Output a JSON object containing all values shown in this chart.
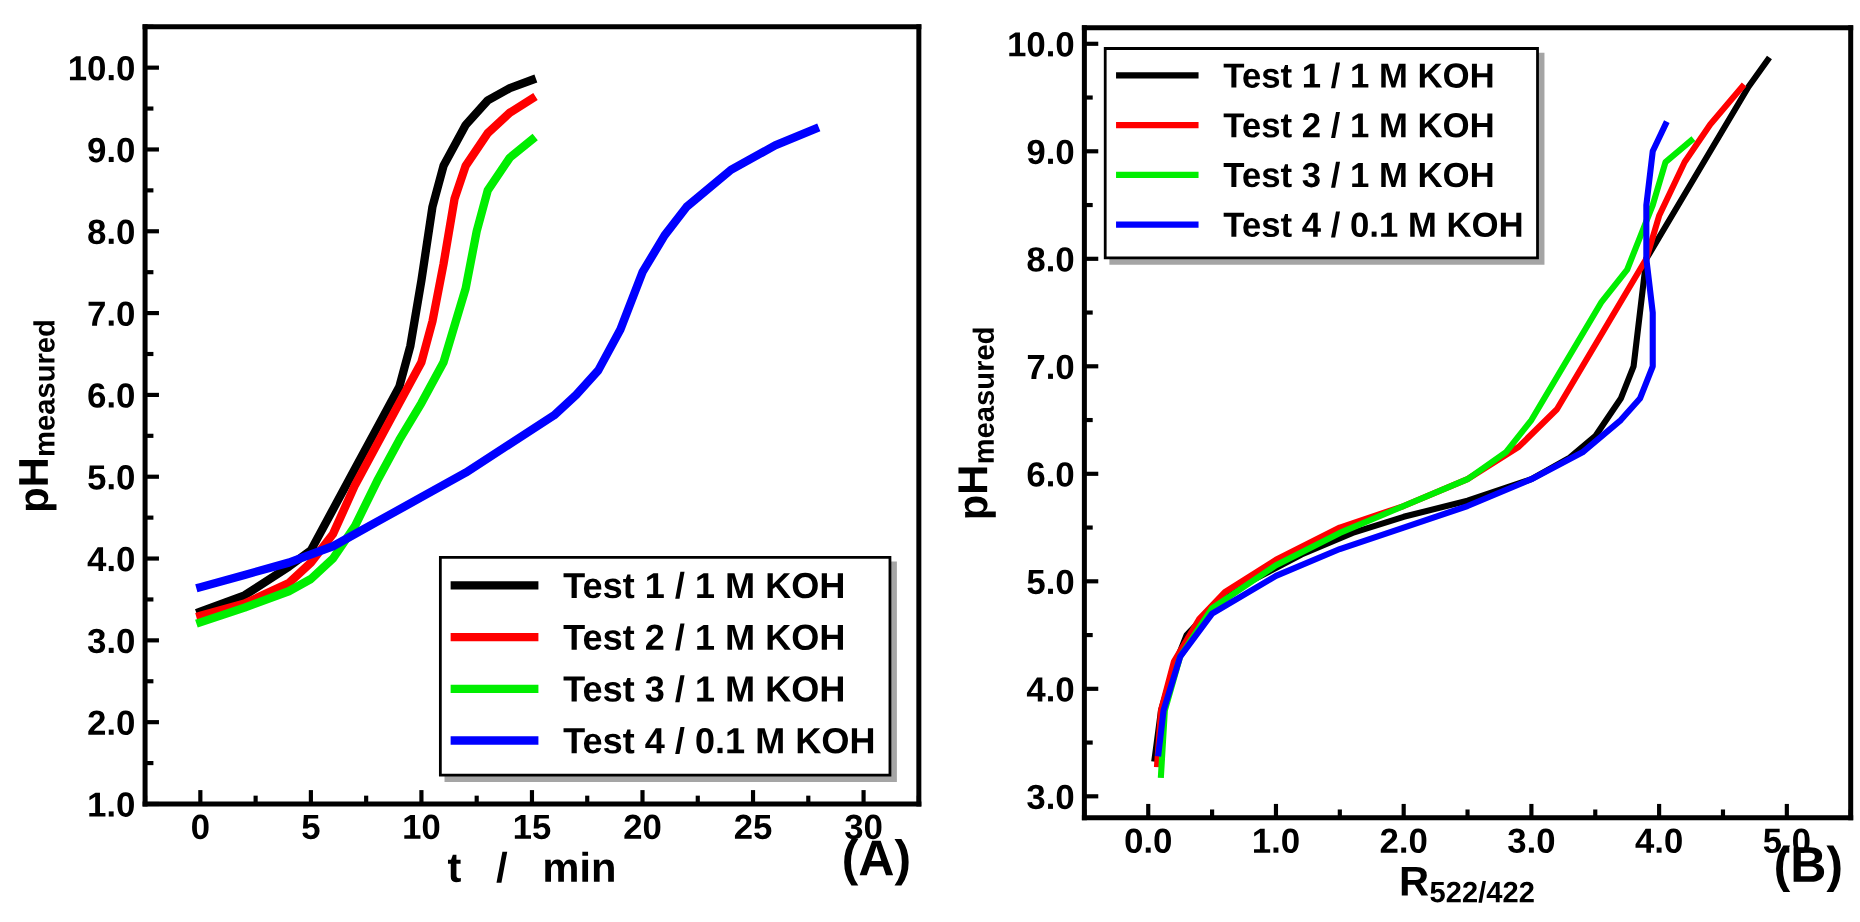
{
  "chart_data": [
    {
      "type": "line",
      "xlabel": "t   /   min",
      "ylabel": "pH$_{measured}$",
      "annotations": [
        "(A)"
      ],
      "legend": "bottom right",
      "grid": false,
      "xlim": [
        -2.5,
        32.5
      ],
      "ylim": [
        1.0,
        10.5
      ],
      "xticks": [
        0,
        5,
        10,
        15,
        20,
        25,
        30
      ],
      "yticks": [
        {
          "value": 1,
          "label": "1.0"
        },
        {
          "value": 2,
          "label": "2.0"
        },
        {
          "value": 3,
          "label": "3.0"
        },
        {
          "value": 4,
          "label": "4.0"
        },
        {
          "value": 5,
          "label": "5.0"
        },
        {
          "value": 6,
          "label": "6.0"
        },
        {
          "value": 7,
          "label": "7.0"
        },
        {
          "value": 8,
          "label": "8.0"
        },
        {
          "value": 9,
          "label": "9.0"
        },
        {
          "value": 10,
          "label": "10.0"
        }
      ],
      "series": [
        {
          "name": "Test 1 / 1 M KOH",
          "color": "#000000",
          "x": [
            0,
            2,
            4,
            5,
            6,
            7,
            8,
            9,
            9.5,
            10,
            10.5,
            11,
            12,
            13,
            14,
            15
          ],
          "values": [
            3.35,
            3.55,
            3.9,
            4.1,
            4.6,
            5.1,
            5.6,
            6.1,
            6.6,
            7.4,
            8.3,
            8.8,
            9.3,
            9.6,
            9.75,
            9.85
          ]
        },
        {
          "name": "Test 2 / 1 M KOH",
          "color": "#ff0000",
          "x": [
            0,
            2,
            4,
            5,
            6,
            7,
            8,
            9,
            10,
            10.5,
            11,
            11.5,
            12,
            13,
            14,
            15
          ],
          "values": [
            3.3,
            3.45,
            3.7,
            3.95,
            4.3,
            4.9,
            5.4,
            5.9,
            6.4,
            6.9,
            7.6,
            8.4,
            8.8,
            9.2,
            9.45,
            9.62
          ]
        },
        {
          "name": "Test 3 / 1 M KOH",
          "color": "#00ee00",
          "x": [
            0,
            2,
            4,
            5,
            6,
            7,
            8,
            9,
            10,
            11,
            12,
            12.5,
            13,
            14,
            15
          ],
          "values": [
            3.22,
            3.4,
            3.6,
            3.75,
            4.0,
            4.4,
            4.95,
            5.45,
            5.9,
            6.4,
            7.3,
            8.0,
            8.5,
            8.9,
            9.12
          ]
        },
        {
          "name": "Test 4 / 0.1 M KOH",
          "color": "#0000ff",
          "x": [
            0,
            2,
            4,
            6,
            8,
            10,
            12,
            14,
            16,
            17,
            18,
            19,
            20,
            21,
            22,
            24,
            26,
            27.8
          ],
          "values": [
            3.65,
            3.8,
            3.95,
            4.15,
            4.45,
            4.75,
            5.05,
            5.4,
            5.75,
            6.0,
            6.3,
            6.8,
            7.5,
            7.95,
            8.3,
            8.75,
            9.05,
            9.25
          ]
        }
      ]
    },
    {
      "type": "line",
      "xlabel": "R$_{522/422}$",
      "ylabel": "pH$_{measured}$",
      "annotations": [
        "(B)"
      ],
      "legend": "top left",
      "grid": false,
      "xlim": [
        -0.5,
        5.5
      ],
      "ylim": [
        2.8,
        10.15
      ],
      "xticks": [
        {
          "value": 0,
          "label": "0.0"
        },
        {
          "value": 1,
          "label": "1.0"
        },
        {
          "value": 2,
          "label": "2.0"
        },
        {
          "value": 3,
          "label": "3.0"
        },
        {
          "value": 4,
          "label": "4.0"
        },
        {
          "value": 5,
          "label": "5.0"
        }
      ],
      "yticks": [
        {
          "value": 3,
          "label": "3.0"
        },
        {
          "value": 4,
          "label": "4.0"
        },
        {
          "value": 5,
          "label": "5.0"
        },
        {
          "value": 6,
          "label": "6.0"
        },
        {
          "value": 7,
          "label": "7.0"
        },
        {
          "value": 8,
          "label": "8.0"
        },
        {
          "value": 9,
          "label": "9.0"
        },
        {
          "value": 10,
          "label": "10.0"
        }
      ],
      "series": [
        {
          "name": "Test 1 / 1 M KOH",
          "color": "#000000",
          "x": [
            0.05,
            0.1,
            0.2,
            0.3,
            0.5,
            0.8,
            1.2,
            1.6,
            2.0,
            2.5,
            3.0,
            3.3,
            3.5,
            3.7,
            3.8,
            3.85,
            3.9,
            4.1,
            4.3,
            4.5,
            4.7,
            4.85
          ],
          "values": [
            3.35,
            3.8,
            4.2,
            4.5,
            4.75,
            5.0,
            5.25,
            5.45,
            5.6,
            5.75,
            5.95,
            6.15,
            6.35,
            6.7,
            7.0,
            7.5,
            8.0,
            8.4,
            8.8,
            9.2,
            9.6,
            9.85
          ]
        },
        {
          "name": "Test 2 / 1 M KOH",
          "color": "#ff0000",
          "x": [
            0.07,
            0.1,
            0.2,
            0.4,
            0.6,
            1.0,
            1.5,
            2.0,
            2.5,
            2.9,
            3.2,
            3.4,
            3.6,
            3.75,
            3.9,
            4.0,
            4.2,
            4.4,
            4.65
          ],
          "values": [
            3.3,
            3.8,
            4.25,
            4.65,
            4.9,
            5.2,
            5.5,
            5.7,
            5.95,
            6.25,
            6.6,
            7.0,
            7.4,
            7.7,
            8.0,
            8.4,
            8.9,
            9.25,
            9.6
          ]
        },
        {
          "name": "Test 3 / 1 M KOH",
          "color": "#00ee00",
          "x": [
            0.1,
            0.13,
            0.25,
            0.5,
            1.0,
            1.5,
            2.0,
            2.5,
            2.8,
            3.0,
            3.2,
            3.4,
            3.55,
            3.75,
            3.85,
            3.95,
            4.05,
            4.25
          ],
          "values": [
            3.2,
            3.8,
            4.3,
            4.75,
            5.15,
            5.45,
            5.7,
            5.95,
            6.2,
            6.5,
            6.9,
            7.3,
            7.6,
            7.9,
            8.2,
            8.5,
            8.9,
            9.1
          ]
        },
        {
          "name": "Test 4 / 0.1 M KOH",
          "color": "#0000ff",
          "x": [
            0.08,
            0.12,
            0.25,
            0.5,
            1.0,
            1.5,
            2.0,
            2.5,
            3.0,
            3.4,
            3.7,
            3.85,
            3.95,
            3.95,
            3.9,
            3.9,
            3.95,
            4.05
          ],
          "values": [
            3.4,
            3.8,
            4.3,
            4.7,
            5.05,
            5.3,
            5.5,
            5.7,
            5.95,
            6.2,
            6.5,
            6.7,
            7.0,
            7.5,
            8.0,
            8.5,
            9.0,
            9.25
          ]
        }
      ]
    }
  ]
}
